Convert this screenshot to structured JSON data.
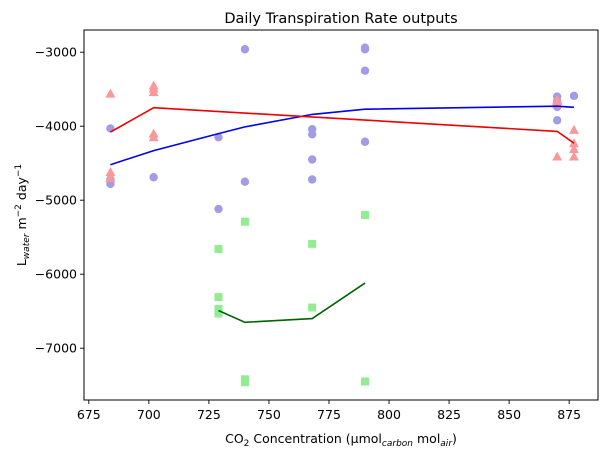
{
  "chart_data": {
    "type": "scatter",
    "title": "Daily Transpiration Rate outputs",
    "xlabel": {
      "prefix": "CO",
      "sub": "2",
      "mid": " Concentration (µmol",
      "sub2": "carbon",
      "mid2": " mol",
      "sub3": "air",
      "suffix": ")"
    },
    "ylabel": {
      "prefix": "L",
      "sub": "water",
      "mid": " m",
      "sup": "−2",
      "mid2": " day",
      "sup2": "−1"
    },
    "xlim": [
      673,
      887
    ],
    "ylim": [
      -7700,
      -2700
    ],
    "xticks": [
      675,
      700,
      725,
      750,
      775,
      800,
      825,
      850,
      875
    ],
    "yticks": [
      -7000,
      -6000,
      -5000,
      -4000,
      -3000
    ],
    "ytick_labels": [
      "−7000",
      "−6000",
      "−5000",
      "−4000",
      "−3000"
    ],
    "grid": false,
    "series": [
      {
        "marker": "circle",
        "color": "#a29be6",
        "points": [
          [
            684,
            -4030
          ],
          [
            684,
            -4720
          ],
          [
            684,
            -4780
          ],
          [
            702,
            -4690
          ],
          [
            729,
            -4150
          ],
          [
            729,
            -5120
          ],
          [
            740,
            -2960
          ],
          [
            740,
            -4750
          ],
          [
            768,
            -4040
          ],
          [
            768,
            -4110
          ],
          [
            768,
            -4450
          ],
          [
            768,
            -4720
          ],
          [
            790,
            -2940
          ],
          [
            790,
            -2960
          ],
          [
            790,
            -3250
          ],
          [
            790,
            -4210
          ],
          [
            870,
            -3600
          ],
          [
            870,
            -3660
          ],
          [
            870,
            -3740
          ],
          [
            870,
            -3920
          ],
          [
            877,
            -3590
          ]
        ]
      },
      {
        "marker": "triangle",
        "color": "#f7989b",
        "points": [
          [
            684,
            -3560
          ],
          [
            684,
            -4620
          ],
          [
            684,
            -4700
          ],
          [
            702,
            -3450
          ],
          [
            702,
            -3490
          ],
          [
            702,
            -3540
          ],
          [
            702,
            -4100
          ],
          [
            702,
            -4150
          ],
          [
            870,
            -3640
          ],
          [
            870,
            -3660
          ],
          [
            870,
            -3700
          ],
          [
            870,
            -4410
          ],
          [
            877,
            -4050
          ],
          [
            877,
            -4230
          ],
          [
            877,
            -4310
          ],
          [
            877,
            -4410
          ]
        ]
      },
      {
        "marker": "square",
        "color": "#90ee90",
        "points": [
          [
            729,
            -5660
          ],
          [
            729,
            -6310
          ],
          [
            729,
            -6470
          ],
          [
            729,
            -6530
          ],
          [
            740,
            -5290
          ],
          [
            740,
            -7420
          ],
          [
            740,
            -7460
          ],
          [
            768,
            -5590
          ],
          [
            768,
            -6450
          ],
          [
            790,
            -5200
          ],
          [
            790,
            -7450
          ]
        ]
      }
    ],
    "lines": [
      {
        "color": "#0000ee",
        "points": [
          [
            684,
            -4520
          ],
          [
            702,
            -4330
          ],
          [
            729,
            -4100
          ],
          [
            740,
            -4010
          ],
          [
            768,
            -3840
          ],
          [
            790,
            -3770
          ],
          [
            870,
            -3730
          ],
          [
            877,
            -3745
          ]
        ]
      },
      {
        "color": "#ee0000",
        "points": [
          [
            684,
            -4080
          ],
          [
            702,
            -3750
          ],
          [
            870,
            -4070
          ],
          [
            877,
            -4230
          ]
        ]
      },
      {
        "color": "#006400",
        "points": [
          [
            729,
            -6490
          ],
          [
            740,
            -6650
          ],
          [
            768,
            -6600
          ],
          [
            790,
            -6120
          ]
        ]
      }
    ]
  }
}
